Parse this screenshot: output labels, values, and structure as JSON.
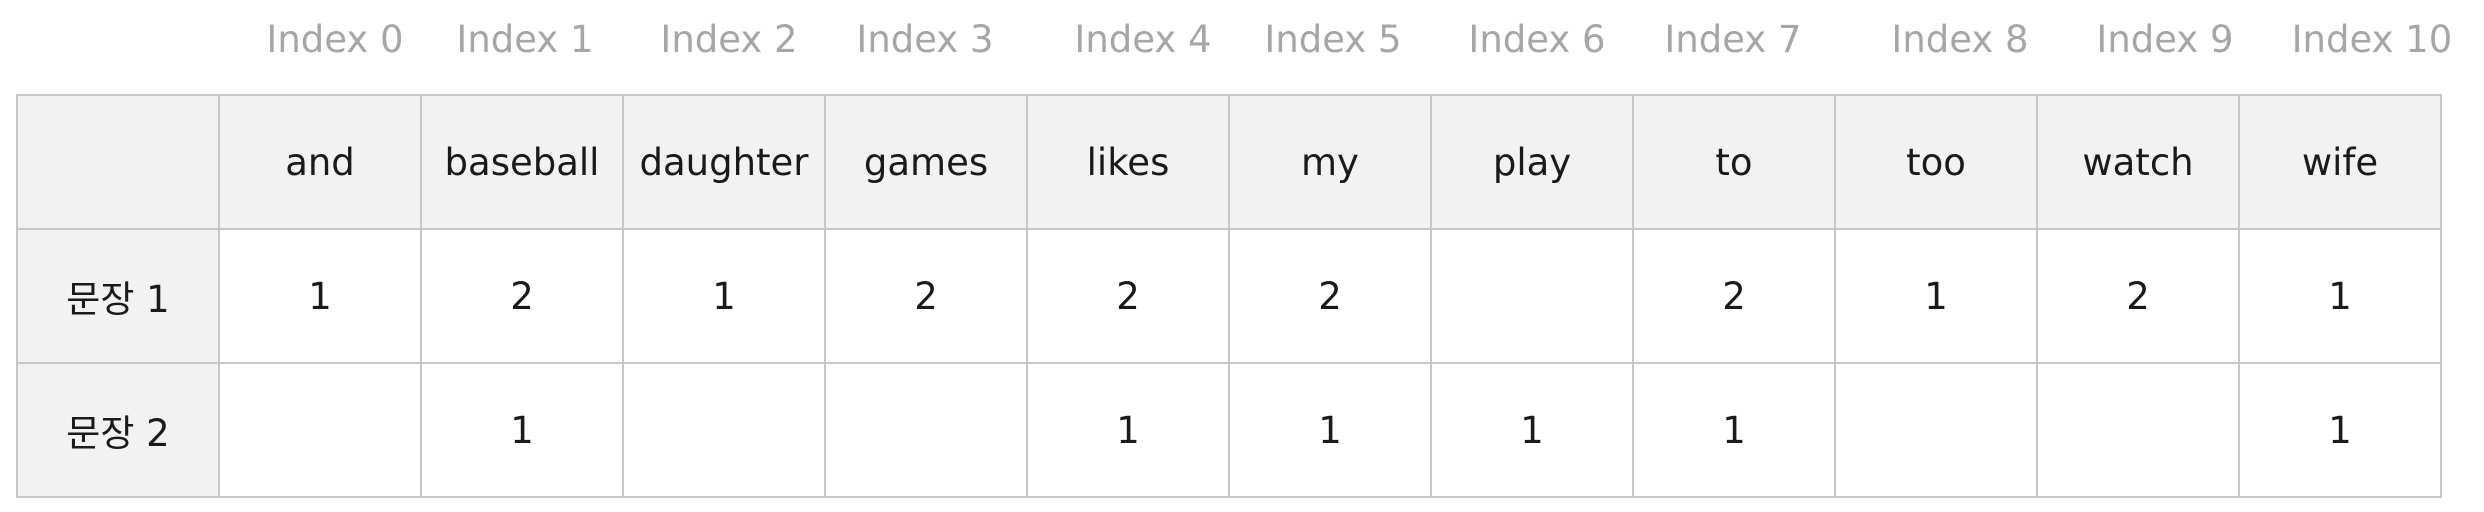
{
  "indices": [
    "Index 0",
    "Index 1",
    "Index 2",
    "Index 3",
    "Index 4",
    "Index 5",
    "Index 6",
    "Index 7",
    "Index 8",
    "Index 9",
    "Index 10"
  ],
  "table": {
    "corner": "",
    "headers": [
      "and",
      "baseball",
      "daughter",
      "games",
      "likes",
      "my",
      "play",
      "to",
      "too",
      "watch",
      "wife"
    ],
    "rows": [
      {
        "label": "문장 1",
        "cells": [
          "1",
          "2",
          "1",
          "2",
          "2",
          "2",
          "",
          "2",
          "1",
          "2",
          "1"
        ]
      },
      {
        "label": "문장 2",
        "cells": [
          "",
          "1",
          "",
          "",
          "1",
          "1",
          "1",
          "1",
          "",
          "",
          "1"
        ]
      }
    ]
  },
  "colors": {
    "header_bg": "#f2f2f2",
    "border": "#c7c7c7",
    "index_text": "#a6a6a6",
    "cell_text": "#1a1a1a"
  }
}
